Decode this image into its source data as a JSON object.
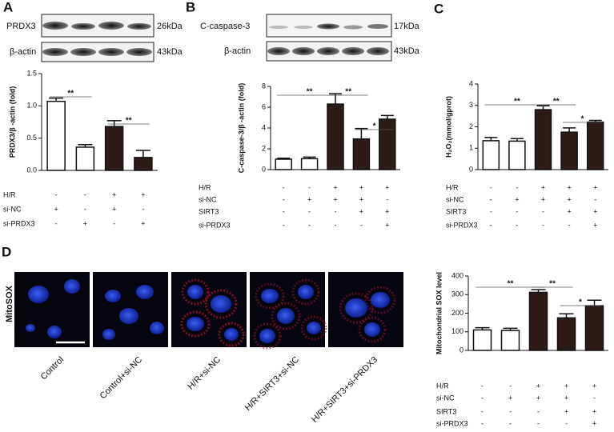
{
  "panels": {
    "letters": [
      "A",
      "B",
      "C",
      "D"
    ],
    "blot_a": {
      "labels": [
        "PRDX3",
        "β-actin"
      ],
      "sizes": [
        "26kDa",
        "43kDa"
      ]
    },
    "blot_b": {
      "labels": [
        "C-caspase-3",
        "β-actin"
      ],
      "sizes": [
        "17kDa",
        "43kDa"
      ]
    },
    "images": {
      "label": "MitoSOX",
      "captions": [
        "Control",
        "Control+si-NC",
        "H/R+si-NC",
        "H/R+SIRT3+si-NC",
        "H/R+SIRT3+si-PRDX3"
      ]
    }
  },
  "chart_data": [
    {
      "type": "bar",
      "ylabel": "PRDX3/β -actin (fold)",
      "values": [
        1.07,
        0.36,
        0.68,
        0.2
      ],
      "errors": [
        0.05,
        0.04,
        0.09,
        0.11
      ],
      "colors": [
        "#ffffff",
        "#ffffff",
        "#2d1b18",
        "#2d1b18"
      ],
      "ylim": [
        0,
        1.5
      ],
      "yticks": [
        {
          "value": 0,
          "label": "0.0"
        },
        {
          "value": 0.5,
          "label": "0.5"
        },
        {
          "value": 1,
          "label": "1.0"
        },
        {
          "value": 1.5,
          "label": "1.5"
        }
      ],
      "conditions": [
        {
          "name": "H/R",
          "values": [
            "-",
            "-",
            "+",
            "+"
          ]
        },
        {
          "name": "si-NC",
          "values": [
            "+",
            "-",
            "+",
            "-"
          ]
        },
        {
          "name": "si-PRDX3",
          "values": [
            "-",
            "+",
            "-",
            "+"
          ]
        }
      ],
      "significance": [
        "**",
        "**"
      ]
    },
    {
      "type": "bar",
      "ylabel": "C-caspase-3/β -actin (fold)",
      "values": [
        1.0,
        1.05,
        6.3,
        2.95,
        4.85
      ],
      "errors": [
        0.1,
        0.15,
        1.0,
        1.0,
        0.35
      ],
      "colors": [
        "#ffffff",
        "#ffffff",
        "#2d1b18",
        "#2d1b18",
        "#2d1b18"
      ],
      "ylim": [
        0,
        8
      ],
      "yticks": [
        0,
        2,
        4,
        6,
        8
      ],
      "conditions": [
        {
          "name": "H/R",
          "values": [
            "-",
            "-",
            "+",
            "+",
            "+"
          ]
        },
        {
          "name": "si-NC",
          "values": [
            "-",
            "+",
            "+",
            "+",
            "-"
          ]
        },
        {
          "name": "SIRT3",
          "values": [
            "-",
            "-",
            "-",
            "+",
            "+"
          ]
        },
        {
          "name": "si-PRDX3",
          "values": [
            "-",
            "-",
            "-",
            "-",
            "+"
          ]
        }
      ],
      "significance": [
        "**",
        "**",
        "*"
      ]
    },
    {
      "type": "bar",
      "ylabel": "H₂O₂(mmol/gprot)",
      "values": [
        1.35,
        1.33,
        2.8,
        1.75,
        2.22
      ],
      "errors": [
        0.15,
        0.12,
        0.18,
        0.2,
        0.08
      ],
      "colors": [
        "#ffffff",
        "#ffffff",
        "#2d1b18",
        "#2d1b18",
        "#2d1b18"
      ],
      "ylim": [
        0,
        4
      ],
      "yticks": [
        0,
        1,
        2,
        3,
        4
      ],
      "conditions": [
        {
          "name": "H/R",
          "values": [
            "-",
            "-",
            "+",
            "+",
            "+"
          ]
        },
        {
          "name": "si-NC",
          "values": [
            "-",
            "+",
            "+",
            "+",
            "-"
          ]
        },
        {
          "name": "SIRT3",
          "values": [
            "-",
            "-",
            "-",
            "+",
            "+"
          ]
        },
        {
          "name": "si-PRDX3",
          "values": [
            "-",
            "-",
            "-",
            "-",
            "+"
          ]
        }
      ],
      "significance": [
        "**",
        "**",
        "*"
      ]
    },
    {
      "type": "bar",
      "ylabel": "Mitochondrial SOX level",
      "values": [
        110,
        107,
        312,
        175,
        240
      ],
      "errors": [
        12,
        12,
        15,
        22,
        30
      ],
      "colors": [
        "#ffffff",
        "#ffffff",
        "#2d1b18",
        "#2d1b18",
        "#2d1b18"
      ],
      "ylim": [
        0,
        400
      ],
      "yticks": [
        0,
        100,
        200,
        300,
        400
      ],
      "conditions": [
        {
          "name": "H/R",
          "values": [
            "-",
            "-",
            "+",
            "+",
            "+"
          ]
        },
        {
          "name": "si-NC",
          "values": [
            "-",
            "+",
            "+",
            "+",
            "-"
          ]
        },
        {
          "name": "SIRT3",
          "values": [
            "-",
            "-",
            "-",
            "+",
            "+"
          ]
        },
        {
          "name": "si-PRDX3",
          "values": [
            "-",
            "-",
            "-",
            "-",
            "+"
          ]
        }
      ],
      "significance": [
        "**",
        "**",
        "*"
      ]
    }
  ]
}
